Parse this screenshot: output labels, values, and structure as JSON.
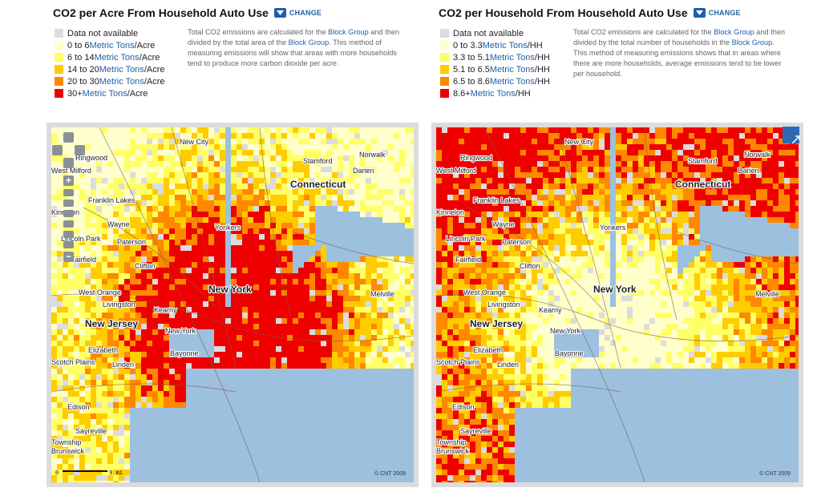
{
  "colors": {
    "na": "#dcdcdc",
    "c1": "#ffffcc",
    "c2": "#ffff66",
    "c3": "#ffcc00",
    "c4": "#ff8800",
    "c5": "#ee0000",
    "water": "#9dc0df",
    "link": "#1f5fa8"
  },
  "left": {
    "title": "CO2 per Acre From Household Auto Use",
    "change_label": "CHANGE",
    "legend": [
      {
        "pre": "Data not available",
        "link": "",
        "post": ""
      },
      {
        "pre": "0 to 6 ",
        "link": "Metric Tons",
        "post": "/Acre"
      },
      {
        "pre": "6 to 14 ",
        "link": "Metric Tons",
        "post": "/Acre"
      },
      {
        "pre": "14 to 20 ",
        "link": "Metric Tons",
        "post": "/Acre"
      },
      {
        "pre": "20 to 30 ",
        "link": "Metric Tons",
        "post": "/Acre"
      },
      {
        "pre": "30+ ",
        "link": "Metric Tons",
        "post": "/Acre"
      }
    ],
    "desc": {
      "p1": "Total CO2 emissions are calculated for the ",
      "l1": "Block Group",
      "p2": " and then divided by the total area of the ",
      "l2": "Block Group",
      "p3": ". This method of measuring emissions will show that areas with more households tend to produce more carbon dioxide per acre."
    },
    "map": {
      "copyright": "© CNT 2009",
      "scale_zero": "0",
      "scale_label": "9 mi"
    }
  },
  "right": {
    "title": "CO2 per Household From Household Auto Use",
    "change_label": "CHANGE",
    "legend": [
      {
        "pre": "Data not available",
        "link": "",
        "post": ""
      },
      {
        "pre": "0 to 3.3 ",
        "link": "Metric Tons",
        "post": "/HH"
      },
      {
        "pre": "3.3 to 5.1 ",
        "link": "Metric Tons",
        "post": "/HH"
      },
      {
        "pre": "5.1 to 6.5 ",
        "link": "Metric Tons",
        "post": "/HH"
      },
      {
        "pre": "6.5 to 8.6 ",
        "link": "Metric Tons",
        "post": "/HH"
      },
      {
        "pre": "8.6+ ",
        "link": "Metric Tons",
        "post": "/HH"
      }
    ],
    "desc": {
      "p1": "Total CO2 emissions are calculated for the ",
      "l1": "Block Group",
      "p2": " and then divided by the total number of households in the ",
      "l2": "Block Group",
      "p3": ". This method of measuring emissions shows that in areas where there are more households, average emissions tend to be lower per household."
    },
    "map": {
      "copyright": "© CNT 2009"
    }
  },
  "places": [
    {
      "name": "New City",
      "bold": false
    },
    {
      "name": "Ringwood",
      "bold": false
    },
    {
      "name": "Stamford",
      "bold": false
    },
    {
      "name": "Norwalk",
      "bold": false
    },
    {
      "name": "Darien",
      "bold": false
    },
    {
      "name": "Connecticut",
      "bold": true
    },
    {
      "name": "Franklin Lakes",
      "bold": false
    },
    {
      "name": "Kinnelon",
      "bold": false
    },
    {
      "name": "Wayne",
      "bold": false
    },
    {
      "name": "Yonkers",
      "bold": false
    },
    {
      "name": "Lincoln Park",
      "bold": false
    },
    {
      "name": "Paterson",
      "bold": false
    },
    {
      "name": "Fairfield",
      "bold": false
    },
    {
      "name": "Clifton",
      "bold": false
    },
    {
      "name": "West Orange",
      "bold": false
    },
    {
      "name": "New York",
      "bold": true
    },
    {
      "name": "Melville",
      "bold": false
    },
    {
      "name": "Livingston",
      "bold": false
    },
    {
      "name": "Kearny",
      "bold": false
    },
    {
      "name": "New Jersey",
      "bold": true
    },
    {
      "name": "New York",
      "bold": false
    },
    {
      "name": "Elizabeth",
      "bold": false
    },
    {
      "name": "Bayonne",
      "bold": false
    },
    {
      "name": "Scotch Plains",
      "bold": false
    },
    {
      "name": "Linden",
      "bold": false
    },
    {
      "name": "Edison",
      "bold": false
    },
    {
      "name": "Sayreville",
      "bold": false
    },
    {
      "name": "Township",
      "bold": false
    },
    {
      "name": "Brunswick",
      "bold": false
    },
    {
      "name": "West Milford",
      "bold": false
    }
  ]
}
